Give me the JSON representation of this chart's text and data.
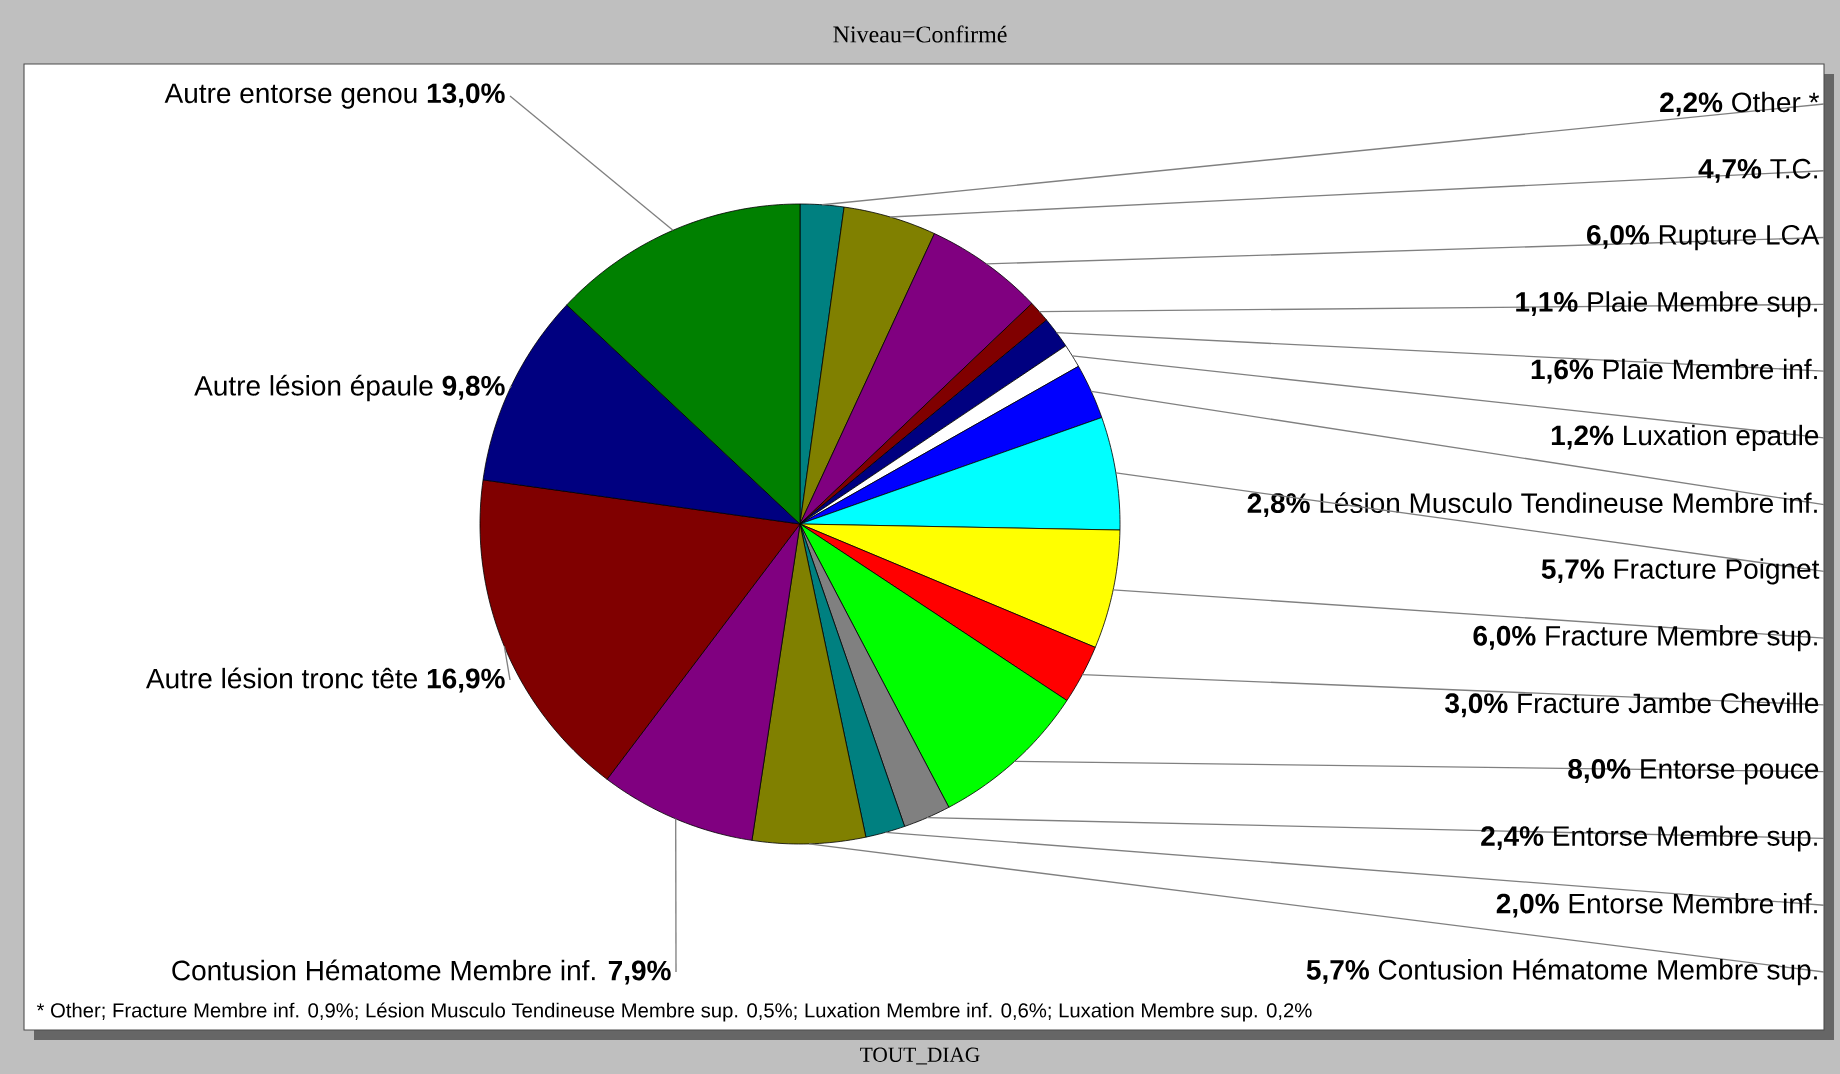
{
  "chart_data": {
    "type": "pie",
    "title": "Niveau=Confirmé",
    "categories": [
      "Other *",
      "T.C.",
      "Rupture LCA",
      "Plaie Membre sup.",
      "Plaie Membre inf.",
      "Luxation epaule",
      "Lésion Musculo Tendineuse Membre inf.",
      "Fracture Poignet",
      "Fracture Membre sup.",
      "Fracture Jambe Cheville",
      "Entorse pouce",
      "Entorse Membre sup.",
      "Entorse Membre inf.",
      "Contusion Hématome Membre sup.",
      "Contusion Hématome Membre inf.",
      "Autre lésion tronc tête",
      "Autre lésion épaule",
      "Autre entorse genou"
    ],
    "values": [
      2.2,
      4.7,
      6.0,
      1.1,
      1.6,
      1.2,
      2.8,
      5.7,
      6.0,
      3.0,
      8.0,
      2.4,
      2.0,
      5.7,
      7.9,
      16.9,
      9.8,
      13.0
    ],
    "value_labels": [
      "2,2%",
      "4,7%",
      "6,0%",
      "1,1%",
      "1,6%",
      "1,2%",
      "2,8%",
      "5,7%",
      "6,0%",
      "3,0%",
      "8,0%",
      "2,4%",
      "2,0%",
      "5,7%",
      "7,9%",
      "16,9%",
      "9,8%",
      "13,0%"
    ],
    "colors": [
      "#008080",
      "#808000",
      "#800080",
      "#800000",
      "#000080",
      "#ffffff",
      "#0000ff",
      "#00ffff",
      "#ffff00",
      "#ff0000",
      "#00ff00",
      "#808080",
      "#008080",
      "#808000",
      "#800080",
      "#800000",
      "#000080",
      "#008000"
    ],
    "annotations": [
      "* Other; Fracture Membre inf. 0,9%; Lésion Musculo Tendineuse Membre sup. 0,5%; Luxation Membre inf. 0,6%; Luxation Membre sup. 0,2%",
      "TOUT_DIAG"
    ]
  }
}
